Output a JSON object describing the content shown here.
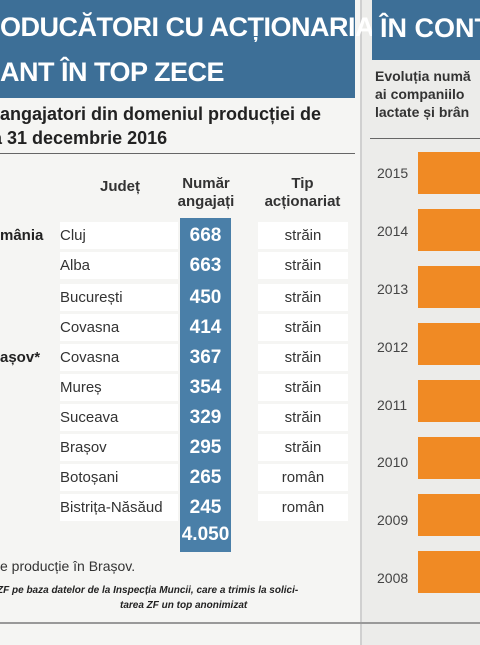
{
  "left": {
    "title": [
      "ODUCĂTORI CU ACȚIONARIAT",
      "ANT ÎN TOP ZECE"
    ],
    "subtitle": [
      "angajatori din domeniul producției de",
      "a 31 decembrie 2016"
    ],
    "headers": {
      "county": "Județ",
      "number": [
        "Număr",
        "angajați"
      ],
      "type": [
        "Tip",
        "acționariat"
      ]
    },
    "rows": [
      {
        "company": "mânia",
        "county": "Cluj",
        "number": "668",
        "type": "străin"
      },
      {
        "company": "",
        "county": "Alba",
        "number": "663",
        "type": "străin"
      },
      {
        "company": "",
        "county": "București",
        "number": "450",
        "type": "străin"
      },
      {
        "company": "",
        "county": "Covasna",
        "number": "414",
        "type": "străin"
      },
      {
        "company": "așov*",
        "county": "Covasna",
        "number": "367",
        "type": "străin"
      },
      {
        "company": "",
        "county": "Mureș",
        "number": "354",
        "type": "străin"
      },
      {
        "company": "",
        "county": "Suceava",
        "number": "329",
        "type": "străin"
      },
      {
        "company": "",
        "county": "Brașov",
        "number": "295",
        "type": "străin"
      },
      {
        "company": "",
        "county": "Botoșani",
        "number": "265",
        "type": "român"
      },
      {
        "company": "",
        "county": "Bistrița-Năsăud",
        "number": "245",
        "type": "român"
      }
    ],
    "total": "4.050",
    "note": "e producție în Brașov.",
    "source": [
      "ZF pe baza datelor de la Inspecția Muncii, care a trimis la solici-",
      "tarea ZF un top anonimizat"
    ]
  },
  "right": {
    "title": "ÎN CONT",
    "subtitle": [
      "Evoluția numă",
      "ai companiilo",
      "lactate și brân"
    ],
    "years": [
      "2015",
      "2014",
      "2013",
      "2012",
      "2011",
      "2010",
      "2009",
      "2008"
    ],
    "bar_color": "#f08a24"
  },
  "colors": {
    "title_bg": "#3d6f97",
    "number_col": "#4a7fa8",
    "accent": "#f08a24"
  }
}
